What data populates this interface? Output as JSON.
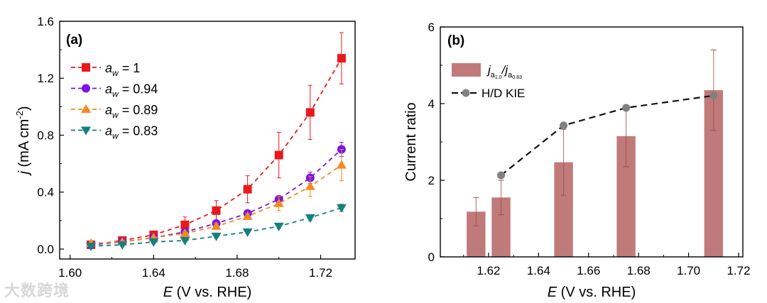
{
  "watermark": "大数跨境",
  "chart_data": [
    {
      "type": "line",
      "panel_label": "(a)",
      "xlabel_italic": "E",
      "xlabel_rest": " (V vs. RHE)",
      "ylabel_italic": "j",
      "ylabel_rest": " (mA cm",
      "ylabel_sup": "-2",
      "ylabel_end": ")",
      "xlim": [
        1.595,
        1.7365
      ],
      "ylim": [
        -0.07,
        1.6
      ],
      "xticks": [
        1.6,
        1.64,
        1.68,
        1.72
      ],
      "xtick_labels": [
        "1.60",
        "1.64",
        "1.68",
        "1.72"
      ],
      "yticks": [
        0.0,
        0.4,
        0.8,
        1.2,
        1.6
      ],
      "ytick_labels": [
        "0.0",
        "0.4",
        "0.8",
        "1.2",
        "1.6"
      ],
      "legend_position": "top-left",
      "x": [
        1.61,
        1.625,
        1.64,
        1.655,
        1.67,
        1.685,
        1.7,
        1.715,
        1.73
      ],
      "series": [
        {
          "name": "a_w = 1",
          "label_main": "a",
          "label_sub": "w",
          "label_value": " = 1",
          "color": "#e8191c",
          "marker": "square",
          "values": [
            0.03,
            0.06,
            0.1,
            0.17,
            0.27,
            0.42,
            0.66,
            0.96,
            1.34
          ],
          "errors": [
            0.01,
            0.015,
            0.02,
            0.055,
            0.07,
            0.095,
            0.16,
            0.19,
            0.18
          ]
        },
        {
          "name": "a_w = 0.94",
          "label_main": "a",
          "label_sub": "w",
          "label_value": " = 0.94",
          "color": "#7b14e8",
          "marker": "circle",
          "values": [
            0.03,
            0.05,
            0.08,
            0.12,
            0.18,
            0.25,
            0.35,
            0.5,
            0.7
          ],
          "errors": [
            0.01,
            0.01,
            0.01,
            0.015,
            0.02,
            0.02,
            0.025,
            0.04,
            0.05
          ]
        },
        {
          "name": "a_w = 0.89",
          "label_main": "a",
          "label_sub": "w",
          "label_value": " = 0.89",
          "color": "#f5891f",
          "marker": "triangle-up",
          "values": [
            0.04,
            0.05,
            0.08,
            0.11,
            0.16,
            0.23,
            0.32,
            0.44,
            0.59
          ],
          "errors": [
            0.01,
            0.01,
            0.01,
            0.015,
            0.02,
            0.02,
            0.05,
            0.07,
            0.11
          ]
        },
        {
          "name": "a_w = 0.83",
          "label_main": "a",
          "label_sub": "w",
          "label_value": " = 0.83",
          "color": "#16807c",
          "marker": "triangle-down",
          "values": [
            0.02,
            0.03,
            0.05,
            0.06,
            0.09,
            0.12,
            0.16,
            0.22,
            0.29
          ],
          "errors": [
            0.005,
            0.005,
            0.01,
            0.01,
            0.01,
            0.01,
            0.015,
            0.02,
            0.025
          ]
        }
      ]
    },
    {
      "type": "bar",
      "panel_label": "(b)",
      "xlabel_italic": "E",
      "xlabel_rest": " (V vs. RHE)",
      "ylabel": "Current ratio",
      "xlim": [
        1.6007,
        1.7217
      ],
      "ylim": [
        0,
        6
      ],
      "xticks": [
        1.62,
        1.64,
        1.66,
        1.68,
        1.7,
        1.72
      ],
      "xtick_labels": [
        "1.62",
        "1.64",
        "1.66",
        "1.68",
        "1.70",
        "1.72"
      ],
      "yticks": [
        0,
        2,
        4,
        6
      ],
      "ytick_labels": [
        "0",
        "2",
        "4",
        "6"
      ],
      "legend_position": "top-left",
      "bar_series": {
        "name": "j_a1.0 / j_a0.83",
        "label_j1": "j",
        "label_sub1": "a",
        "label_subsub1": "1.0",
        "label_slash": "/",
        "label_j2": "j",
        "label_sub2": "a",
        "label_subsub2": "0.83",
        "color": "#c07a7a",
        "x": [
          1.615,
          1.625,
          1.65,
          1.675,
          1.71
        ],
        "values": [
          1.18,
          1.55,
          2.47,
          3.15,
          4.35
        ],
        "errors": [
          0.37,
          0.45,
          0.86,
          0.8,
          1.05
        ]
      },
      "line_series": {
        "name": "H/D KIE",
        "color": "#111111",
        "marker_color": "#808080",
        "x": [
          1.625,
          1.65,
          1.675,
          1.71
        ],
        "values": [
          2.13,
          3.43,
          3.89,
          4.21
        ]
      }
    }
  ]
}
